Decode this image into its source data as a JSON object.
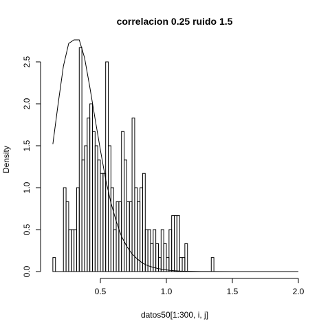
{
  "chart_data": {
    "type": "bar",
    "title": "correlacion 0.25 ruido 1.5",
    "xlabel": "datos50[1:300, i, j]",
    "ylabel": "Density",
    "xlim": [
      0.1,
      2.0
    ],
    "ylim": [
      0,
      2.7
    ],
    "x_ticks": [
      "0.5",
      "1.0",
      "1.5",
      "2.0"
    ],
    "y_ticks": [
      "0.0",
      "0.5",
      "1.0",
      "1.5",
      "2.0",
      "2.5"
    ],
    "bin_start": 0.14,
    "bin_width": 0.02,
    "values": [
      0.167,
      0,
      0,
      0,
      1.0,
      0.833,
      0.5,
      0.5,
      0.5,
      1.0,
      2.67,
      1.33,
      1.5,
      1.83,
      2.0,
      1.67,
      1.5,
      1.33,
      1.17,
      1.17,
      2.5,
      1.5,
      1.0,
      0.5,
      0.833,
      0.833,
      1.67,
      1.33,
      0.833,
      0.833,
      1.83,
      1.0,
      0.833,
      1.0,
      1.17,
      0.5,
      0.5,
      0.333,
      0.5,
      0.333,
      0.167,
      0.5,
      0.333,
      0.167,
      0.5,
      0.667,
      0.667,
      0.667,
      0.167,
      0.167,
      0.333,
      0,
      0,
      0,
      0,
      0,
      0,
      0,
      0,
      0,
      0.167,
      0,
      0,
      0,
      0,
      0,
      0,
      0,
      0,
      0,
      0,
      0,
      0,
      0,
      0,
      0,
      0,
      0,
      0,
      0,
      0,
      0,
      0,
      0,
      0,
      0,
      0,
      0,
      0,
      0,
      0,
      0,
      0,
      0,
      0,
      0,
      0
    ],
    "curve": {
      "x": [
        0.14,
        0.18,
        0.22,
        0.26,
        0.3,
        0.34,
        0.38,
        0.42,
        0.46,
        0.5,
        0.54,
        0.58,
        0.62,
        0.66,
        0.7,
        0.74,
        0.78,
        0.82,
        0.86,
        0.9,
        0.94,
        0.98,
        1.02,
        1.06,
        1.1,
        1.14,
        1.18,
        1.22,
        1.26,
        1.3,
        1.5,
        1.7,
        2.0
      ],
      "y": [
        1.52,
        2.0,
        2.45,
        2.72,
        2.88,
        2.82,
        2.55,
        2.2,
        1.82,
        1.45,
        1.1,
        0.82,
        0.6,
        0.42,
        0.3,
        0.21,
        0.15,
        0.1,
        0.07,
        0.05,
        0.035,
        0.025,
        0.015,
        0.01,
        0.006,
        0.004,
        0.003,
        0.002,
        0.001,
        0.001,
        0,
        0,
        0
      ]
    },
    "grid": false,
    "legend": "none"
  }
}
